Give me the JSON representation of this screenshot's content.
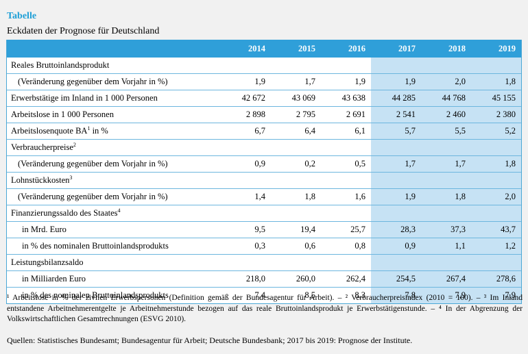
{
  "caption": "Tabelle",
  "title": "Eckdaten der Prognose für Deutschland",
  "years": [
    "2014",
    "2015",
    "2016",
    "2017",
    "2018",
    "2019"
  ],
  "forecast_color": "#c6e2f4",
  "header_color": "#2f9fd9",
  "rows": [
    {
      "label": "Reales Bruttoinlandsprodukt",
      "sup": "",
      "indent": 0,
      "values": [
        "",
        "",
        "",
        "",
        "",
        ""
      ]
    },
    {
      "label": "(Veränderung gegenüber dem Vorjahr in %)",
      "sup": "",
      "indent": 1,
      "values": [
        "1,9",
        "1,7",
        "1,9",
        "1,9",
        "2,0",
        "1,8"
      ]
    },
    {
      "label": "Erwerbstätige im Inland in 1 000 Personen",
      "sup": "",
      "indent": 0,
      "values": [
        "42 672",
        "43 069",
        "43 638",
        "44 285",
        "44 768",
        "45 155"
      ]
    },
    {
      "label": "Arbeitslose in 1 000 Personen",
      "sup": "",
      "indent": 0,
      "values": [
        "2 898",
        "2 795",
        "2 691",
        "2 541",
        "2 460",
        "2 380"
      ]
    },
    {
      "label": "Arbeitslosenquote BA",
      "sup": "1",
      "label_suffix": " in %",
      "indent": 0,
      "values": [
        "6,7",
        "6,4",
        "6,1",
        "5,7",
        "5,5",
        "5,2"
      ]
    },
    {
      "label": "Verbraucherpreise",
      "sup": "2",
      "indent": 0,
      "values": [
        "",
        "",
        "",
        "",
        "",
        ""
      ]
    },
    {
      "label": "(Veränderung gegenüber dem Vorjahr in %)",
      "sup": "",
      "indent": 1,
      "values": [
        "0,9",
        "0,2",
        "0,5",
        "1,7",
        "1,7",
        "1,8"
      ]
    },
    {
      "label": "Lohnstückkosten",
      "sup": "3",
      "indent": 0,
      "values": [
        "",
        "",
        "",
        "",
        "",
        ""
      ]
    },
    {
      "label": "(Veränderung gegenüber dem Vorjahr in %)",
      "sup": "",
      "indent": 1,
      "values": [
        "1,4",
        "1,8",
        "1,6",
        "1,9",
        "1,8",
        "2,0"
      ]
    },
    {
      "label": "Finanzierungssaldo des Staates",
      "sup": "4",
      "indent": 0,
      "values": [
        "",
        "",
        "",
        "",
        "",
        ""
      ]
    },
    {
      "label": "in Mrd. Euro",
      "sup": "",
      "indent": 2,
      "values": [
        "9,5",
        "19,4",
        "25,7",
        "28,3",
        "37,3",
        "43,7"
      ]
    },
    {
      "label": "in % des nominalen Bruttoinlandsprodukts",
      "sup": "",
      "indent": 2,
      "values": [
        "0,3",
        "0,6",
        "0,8",
        "0,9",
        "1,1",
        "1,2"
      ]
    },
    {
      "label": "Leistungsbilanzsaldo",
      "sup": "",
      "indent": 0,
      "values": [
        "",
        "",
        "",
        "",
        "",
        ""
      ]
    },
    {
      "label": "in Milliarden Euro",
      "sup": "",
      "indent": 2,
      "values": [
        "218,0",
        "260,0",
        "262,4",
        "254,5",
        "267,4",
        "278,6"
      ]
    },
    {
      "label": "in % des nominalen Bruttoinlandsprodukts",
      "sup": "",
      "indent": 2,
      "values": [
        "7,4",
        "8,5",
        "8,3",
        "7,8",
        "7,9",
        "7,9"
      ]
    }
  ],
  "footnotes": "¹ Arbeitslose in % der zivilen Erwerbspersonen (Definition gemäß der Bundesagentur für Arbeit). – ² Verbraucherpreisindex (2010 = 100). – ³ Im Inland entstandene Arbeitnehmerentgelte je Arbeitnehmerstunde bezogen auf das reale Bruttoinlandsprodukt je Erwerbstätigenstunde. – ⁴ In der Abgrenzung der Volkswirtschaftlichen Gesamtrechnungen (ESVG 2010).",
  "sources": "Quellen: Statistisches Bundesamt; Bundesagentur für Arbeit; Deutsche Bundesbank; 2017 bis 2019: Prognose der Institute."
}
